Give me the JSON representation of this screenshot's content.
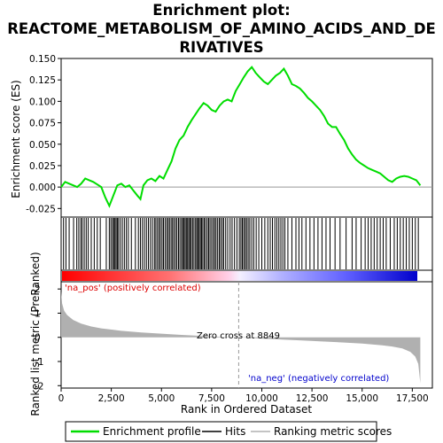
{
  "title_lines": [
    "Enrichment plot:",
    "REACTOME_METABOLISM_OF_AMINO_ACIDS_AND_DE",
    "RIVATIVES"
  ],
  "colors": {
    "es_line": "#00dd00",
    "hits": "#000000",
    "ranking_fill": "#b0b0b0",
    "pos_label": "#dd0000",
    "neg_label": "#0000cc",
    "zero_line": "#999999",
    "frame": "#000000",
    "pos_bar": "#ff0000",
    "neg_bar": "#0000ff"
  },
  "chart_data": [
    {
      "type": "line",
      "name": "enrichment-profile",
      "ylabel": "Enrichment score (ES)",
      "xlim": [
        0,
        18500
      ],
      "ylim": [
        -0.035,
        0.15
      ],
      "yticks": [
        "0.150",
        "0.125",
        "0.100",
        "0.075",
        "0.050",
        "0.025",
        "0.000",
        "-0.025"
      ],
      "ytick_values": [
        0.15,
        0.125,
        0.1,
        0.075,
        0.05,
        0.025,
        0.0,
        -0.025
      ],
      "points": [
        [
          0,
          0.0
        ],
        [
          200,
          0.006
        ],
        [
          400,
          0.004
        ],
        [
          600,
          0.002
        ],
        [
          800,
          0.0
        ],
        [
          1000,
          0.004
        ],
        [
          1200,
          0.01
        ],
        [
          1400,
          0.008
        ],
        [
          1600,
          0.006
        ],
        [
          1800,
          0.003
        ],
        [
          2000,
          0.0
        ],
        [
          2200,
          -0.012
        ],
        [
          2400,
          -0.022
        ],
        [
          2600,
          -0.01
        ],
        [
          2800,
          0.002
        ],
        [
          3000,
          0.004
        ],
        [
          3200,
          0.0
        ],
        [
          3400,
          0.002
        ],
        [
          3600,
          -0.004
        ],
        [
          3800,
          -0.01
        ],
        [
          3950,
          -0.014
        ],
        [
          4100,
          0.002
        ],
        [
          4300,
          0.008
        ],
        [
          4500,
          0.01
        ],
        [
          4700,
          0.007
        ],
        [
          4900,
          0.013
        ],
        [
          5100,
          0.01
        ],
        [
          5300,
          0.02
        ],
        [
          5500,
          0.03
        ],
        [
          5700,
          0.045
        ],
        [
          5900,
          0.055
        ],
        [
          6100,
          0.06
        ],
        [
          6300,
          0.07
        ],
        [
          6500,
          0.078
        ],
        [
          6700,
          0.085
        ],
        [
          6900,
          0.092
        ],
        [
          7100,
          0.098
        ],
        [
          7300,
          0.095
        ],
        [
          7500,
          0.09
        ],
        [
          7700,
          0.088
        ],
        [
          7900,
          0.095
        ],
        [
          8100,
          0.1
        ],
        [
          8300,
          0.102
        ],
        [
          8500,
          0.1
        ],
        [
          8700,
          0.112
        ],
        [
          8900,
          0.12
        ],
        [
          9100,
          0.128
        ],
        [
          9300,
          0.135
        ],
        [
          9500,
          0.14
        ],
        [
          9700,
          0.133
        ],
        [
          9900,
          0.128
        ],
        [
          10100,
          0.123
        ],
        [
          10300,
          0.12
        ],
        [
          10500,
          0.125
        ],
        [
          10700,
          0.13
        ],
        [
          10900,
          0.133
        ],
        [
          11100,
          0.138
        ],
        [
          11300,
          0.13
        ],
        [
          11500,
          0.12
        ],
        [
          11700,
          0.118
        ],
        [
          11900,
          0.115
        ],
        [
          12100,
          0.11
        ],
        [
          12300,
          0.104
        ],
        [
          12500,
          0.1
        ],
        [
          12700,
          0.095
        ],
        [
          12900,
          0.09
        ],
        [
          13100,
          0.083
        ],
        [
          13300,
          0.074
        ],
        [
          13500,
          0.07
        ],
        [
          13700,
          0.07
        ],
        [
          13900,
          0.062
        ],
        [
          14100,
          0.055
        ],
        [
          14300,
          0.045
        ],
        [
          14500,
          0.038
        ],
        [
          14700,
          0.032
        ],
        [
          14900,
          0.028
        ],
        [
          15100,
          0.025
        ],
        [
          15300,
          0.022
        ],
        [
          15500,
          0.02
        ],
        [
          15700,
          0.018
        ],
        [
          15900,
          0.016
        ],
        [
          16100,
          0.012
        ],
        [
          16300,
          0.008
        ],
        [
          16500,
          0.006
        ],
        [
          16700,
          0.01
        ],
        [
          16900,
          0.012
        ],
        [
          17100,
          0.013
        ],
        [
          17300,
          0.012
        ],
        [
          17500,
          0.01
        ],
        [
          17700,
          0.008
        ],
        [
          17900,
          0.002
        ]
      ]
    },
    {
      "type": "hits",
      "name": "hits",
      "positions": [
        120,
        240,
        400,
        620,
        780,
        880,
        980,
        1050,
        1150,
        1250,
        1350,
        1500,
        1650,
        1800,
        1950,
        2250,
        2400,
        2480,
        2560,
        2620,
        2680,
        2740,
        2800,
        2860,
        2950,
        3050,
        3150,
        3250,
        3350,
        3500,
        3700,
        3850,
        3950,
        4050,
        4150,
        4250,
        4350,
        4450,
        4550,
        4650,
        4720,
        4800,
        4880,
        4950,
        5030,
        5100,
        5180,
        5260,
        5330,
        5400,
        5480,
        5550,
        5620,
        5700,
        5770,
        5850,
        5920,
        6000,
        6060,
        6120,
        6180,
        6240,
        6300,
        6360,
        6420,
        6480,
        6550,
        6620,
        6700,
        6760,
        6820,
        6880,
        6940,
        7000,
        7060,
        7130,
        7200,
        7280,
        7350,
        7420,
        7500,
        7580,
        7650,
        7720,
        7800,
        7880,
        7950,
        8030,
        8100,
        8200,
        8300,
        8420,
        8520,
        8640,
        8760,
        8880,
        8960,
        9030,
        9100,
        9170,
        9240,
        9320,
        9400,
        9500,
        9600,
        9720,
        9850,
        10000,
        10150,
        10300,
        10420,
        10530,
        10650,
        10750,
        10850,
        10950,
        11050,
        11150,
        11300,
        11500,
        11700,
        11850,
        12000,
        12200,
        12400,
        12600,
        12800,
        13000,
        13200,
        13400,
        13650,
        13900,
        14200,
        14500,
        14700,
        14950,
        15150,
        15300,
        15450,
        15600,
        15750,
        15900,
        16050,
        16200,
        16400,
        16600,
        16750,
        16900,
        17050,
        17200,
        17350,
        17500,
        17650,
        17800
      ]
    },
    {
      "type": "area",
      "name": "ranked-list-metric",
      "ylabel": "Ranked list metric (PreRanked)",
      "xlabel": "Rank in Ordered Dataset",
      "ylim": [
        -2.1,
        2.3
      ],
      "yticks": [
        "2",
        "1",
        "0",
        "-1",
        "-2"
      ],
      "ytick_values": [
        2,
        1,
        0,
        -1,
        -2
      ],
      "xticks": [
        "0",
        "2,500",
        "5,000",
        "7,500",
        "10,000",
        "12,500",
        "15,000",
        "17,500"
      ],
      "xtick_values": [
        0,
        2500,
        5000,
        7500,
        10000,
        12500,
        15000,
        17500
      ],
      "zero_cross": 8849,
      "points": [
        [
          0,
          1.9
        ],
        [
          50,
          1.4
        ],
        [
          150,
          1.1
        ],
        [
          300,
          0.92
        ],
        [
          600,
          0.72
        ],
        [
          1000,
          0.57
        ],
        [
          1500,
          0.45
        ],
        [
          2000,
          0.37
        ],
        [
          3000,
          0.27
        ],
        [
          4000,
          0.2
        ],
        [
          5000,
          0.15
        ],
        [
          6000,
          0.1
        ],
        [
          7000,
          0.06
        ],
        [
          8000,
          0.02
        ],
        [
          8849,
          0.0
        ],
        [
          10000,
          -0.05
        ],
        [
          11000,
          -0.09
        ],
        [
          12000,
          -0.13
        ],
        [
          13000,
          -0.17
        ],
        [
          14000,
          -0.21
        ],
        [
          15000,
          -0.26
        ],
        [
          16000,
          -0.33
        ],
        [
          16500,
          -0.38
        ],
        [
          17000,
          -0.46
        ],
        [
          17400,
          -0.6
        ],
        [
          17650,
          -0.8
        ],
        [
          17800,
          -1.1
        ],
        [
          17900,
          -1.9
        ]
      ]
    }
  ],
  "labels": {
    "pos": "'na_pos' (positively correlated)",
    "neg": "'na_neg' (negatively correlated)",
    "zero_cross": "Zero cross at 8849"
  },
  "legend": {
    "items": [
      {
        "label": "Enrichment profile",
        "icon": "green-line-icon"
      },
      {
        "label": "Hits",
        "icon": "black-line-icon"
      },
      {
        "label": "Ranking metric scores",
        "icon": "gray-line-icon"
      }
    ]
  }
}
